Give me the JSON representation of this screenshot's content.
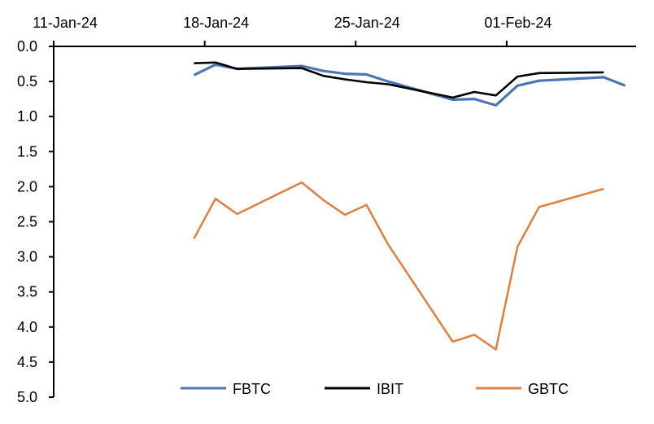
{
  "chart_data": {
    "type": "line",
    "title": "",
    "xlabel": "",
    "ylabel": "",
    "x_axis_position": "top",
    "y_inverted": true,
    "ylim": [
      0,
      5
    ],
    "yticks": [
      "0.0",
      "0.5",
      "1.0",
      "1.5",
      "2.0",
      "2.5",
      "3.0",
      "3.5",
      "4.0",
      "4.5",
      "5.0"
    ],
    "xlim": [
      "2024-01-11",
      "2024-02-07"
    ],
    "xticks": [
      {
        "date": "2024-01-11",
        "label": "11-Jan-24"
      },
      {
        "date": "2024-01-18",
        "label": "18-Jan-24"
      },
      {
        "date": "2024-01-25",
        "label": "25-Jan-24"
      },
      {
        "date": "2024-02-01",
        "label": "01-Feb-24"
      }
    ],
    "grid": false,
    "legend_position": "bottom",
    "x": [
      "2024-01-17",
      "2024-01-18",
      "2024-01-19",
      "2024-01-22",
      "2024-01-23",
      "2024-01-24",
      "2024-01-25",
      "2024-01-26",
      "2024-01-29",
      "2024-01-30",
      "2024-01-31",
      "2024-02-01",
      "2024-02-02",
      "2024-02-05",
      "2024-02-06"
    ],
    "series": [
      {
        "name": "FBTC",
        "color": "#4f74b5",
        "values": [
          0.41,
          0.26,
          0.32,
          0.28,
          0.35,
          0.39,
          0.4,
          0.5,
          0.76,
          0.75,
          0.84,
          0.56,
          0.49,
          0.44,
          0.56
        ]
      },
      {
        "name": "IBIT",
        "color": "#000000",
        "values": [
          0.24,
          0.23,
          0.32,
          0.31,
          0.42,
          0.47,
          0.51,
          0.54,
          0.73,
          0.65,
          0.7,
          0.43,
          0.38,
          0.37,
          null
        ]
      },
      {
        "name": "GBTC",
        "color": "#dd8444",
        "values": [
          2.74,
          2.17,
          2.39,
          1.94,
          2.19,
          2.4,
          2.26,
          2.82,
          4.21,
          4.11,
          4.32,
          2.86,
          2.29,
          2.03,
          null
        ]
      }
    ]
  }
}
